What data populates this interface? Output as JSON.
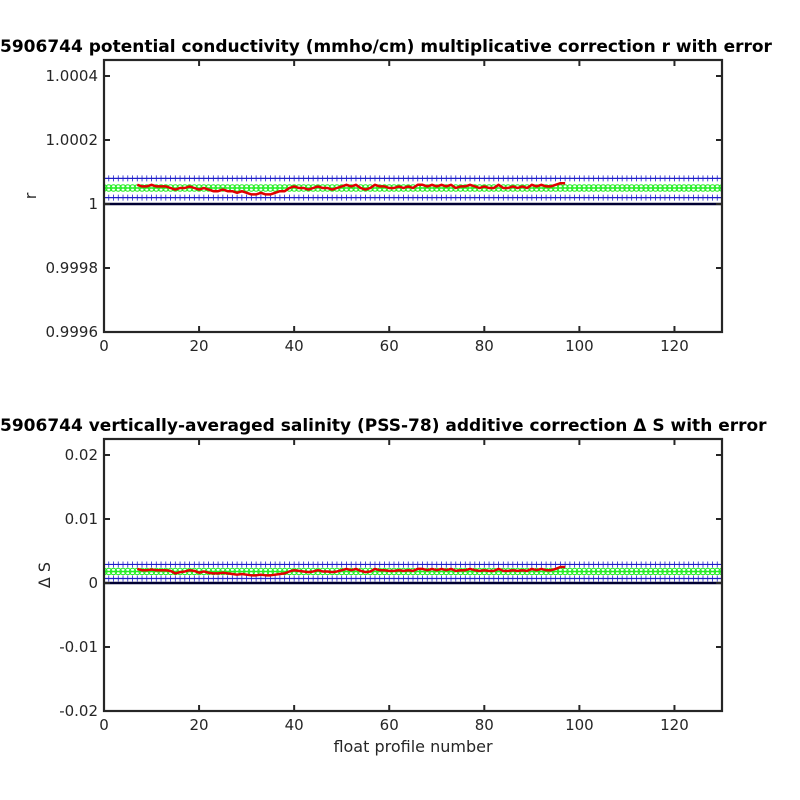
{
  "chart_data": [
    {
      "type": "line",
      "title": "5906744 potential conductivity (mmho/cm) multiplicative correction r with error",
      "xlabel": "",
      "ylabel": "r",
      "xlim": [
        0,
        130
      ],
      "ylim": [
        0.9996,
        1.00045
      ],
      "xticks": [
        0,
        20,
        40,
        60,
        80,
        100,
        120
      ],
      "xtick_labels": [
        "0",
        "20",
        "40",
        "60",
        "80",
        "100",
        "120"
      ],
      "yticks": [
        0.9996,
        0.9998,
        1.0,
        1.0002,
        1.0004
      ],
      "ytick_labels": [
        "0.9996",
        "0.9998",
        "1",
        "1.0002",
        "1.0004"
      ],
      "reference_line": 1.0,
      "grid": false,
      "series": [
        {
          "role": "correction",
          "color": "#e00000",
          "x": [
            7,
            8,
            9,
            10,
            11,
            12,
            13,
            14,
            15,
            16,
            17,
            18,
            19,
            20,
            21,
            22,
            23,
            24,
            25,
            26,
            27,
            28,
            29,
            30,
            31,
            32,
            33,
            34,
            35,
            36,
            37,
            38,
            39,
            40,
            41,
            42,
            43,
            44,
            45,
            46,
            47,
            48,
            49,
            50,
            51,
            52,
            53,
            54,
            55,
            56,
            57,
            58,
            59,
            60,
            61,
            62,
            63,
            64,
            65,
            66,
            67,
            68,
            69,
            70,
            71,
            72,
            73,
            74,
            75,
            76,
            77,
            78,
            79,
            80,
            81,
            82,
            83,
            84,
            85,
            86,
            87,
            88,
            89,
            90,
            91,
            92,
            93,
            94,
            95,
            96,
            97
          ],
          "y": [
            1.00006,
            1.000055,
            1.000055,
            1.00006,
            1.000055,
            1.000055,
            1.000055,
            1.00005,
            1.000045,
            1.00005,
            1.00005,
            1.000055,
            1.00005,
            1.000045,
            1.00005,
            1.000045,
            1.00004,
            1.00004,
            1.000045,
            1.00004,
            1.00004,
            1.000035,
            1.00004,
            1.000035,
            1.00003,
            1.00003,
            1.000035,
            1.00003,
            1.00003,
            1.000035,
            1.00004,
            1.00004,
            1.00005,
            1.000055,
            1.00005,
            1.00005,
            1.000045,
            1.00005,
            1.000055,
            1.00005,
            1.00005,
            1.000045,
            1.00005,
            1.000055,
            1.00006,
            1.000055,
            1.00006,
            1.00005,
            1.000045,
            1.00005,
            1.00006,
            1.000055,
            1.000055,
            1.00005,
            1.00005,
            1.000055,
            1.00005,
            1.000055,
            1.00005,
            1.00006,
            1.00006,
            1.000055,
            1.00006,
            1.000055,
            1.00006,
            1.000055,
            1.00006,
            1.00005,
            1.000055,
            1.000055,
            1.00006,
            1.000055,
            1.00005,
            1.000055,
            1.00005,
            1.00005,
            1.00006,
            1.00005,
            1.00005,
            1.000055,
            1.00005,
            1.000055,
            1.00005,
            1.00006,
            1.000055,
            1.00006,
            1.000055,
            1.000055,
            1.00006,
            1.000065,
            1.000065
          ]
        },
        {
          "role": "mean",
          "color": "#22ee22",
          "marker": "circle",
          "x_start": 0,
          "x_end": 130,
          "x_step": 1,
          "y": 1.00005
        },
        {
          "role": "error",
          "color": "#1e1ec8",
          "marker": "plus",
          "x_start": 0,
          "x_end": 130,
          "x_step": 1,
          "y_upper": 1.00008,
          "y_lower": 1.00002
        }
      ]
    },
    {
      "type": "line",
      "title": "5906744 vertically-averaged salinity (PSS-78) additive correction Δ S with error",
      "xlabel": "float profile number",
      "ylabel": "Δ S",
      "xlim": [
        0,
        130
      ],
      "ylim": [
        -0.02,
        0.0225
      ],
      "xticks": [
        0,
        20,
        40,
        60,
        80,
        100,
        120
      ],
      "xtick_labels": [
        "0",
        "20",
        "40",
        "60",
        "80",
        "100",
        "120"
      ],
      "yticks": [
        -0.02,
        -0.01,
        0,
        0.01,
        0.02
      ],
      "ytick_labels": [
        "-0.02",
        "-0.01",
        "0",
        "0.01",
        "0.02"
      ],
      "reference_line": 0,
      "grid": false,
      "series": [
        {
          "role": "correction",
          "color": "#e00000",
          "x": [
            7,
            8,
            9,
            10,
            11,
            12,
            13,
            14,
            15,
            16,
            17,
            18,
            19,
            20,
            21,
            22,
            23,
            24,
            25,
            26,
            27,
            28,
            29,
            30,
            31,
            32,
            33,
            34,
            35,
            36,
            37,
            38,
            39,
            40,
            41,
            42,
            43,
            44,
            45,
            46,
            47,
            48,
            49,
            50,
            51,
            52,
            53,
            54,
            55,
            56,
            57,
            58,
            59,
            60,
            61,
            62,
            63,
            64,
            65,
            66,
            67,
            68,
            69,
            70,
            71,
            72,
            73,
            74,
            75,
            76,
            77,
            78,
            79,
            80,
            81,
            82,
            83,
            84,
            85,
            86,
            87,
            88,
            89,
            90,
            91,
            92,
            93,
            94,
            95,
            96,
            97
          ],
          "y": [
            0.0022,
            0.002,
            0.002,
            0.0021,
            0.002,
            0.002,
            0.002,
            0.0019,
            0.0015,
            0.0017,
            0.0018,
            0.002,
            0.0019,
            0.0016,
            0.0018,
            0.0016,
            0.0015,
            0.0015,
            0.0016,
            0.0015,
            0.0014,
            0.0013,
            0.0014,
            0.0013,
            0.0012,
            0.0012,
            0.0013,
            0.0012,
            0.0012,
            0.0013,
            0.0014,
            0.0015,
            0.0018,
            0.002,
            0.0019,
            0.0018,
            0.0017,
            0.0018,
            0.002,
            0.0018,
            0.0018,
            0.0017,
            0.0018,
            0.002,
            0.0022,
            0.002,
            0.0022,
            0.0019,
            0.0017,
            0.0018,
            0.0022,
            0.002,
            0.002,
            0.0019,
            0.0019,
            0.002,
            0.0019,
            0.002,
            0.0019,
            0.0022,
            0.0022,
            0.002,
            0.0022,
            0.002,
            0.0022,
            0.002,
            0.0022,
            0.0019,
            0.002,
            0.002,
            0.0022,
            0.002,
            0.0019,
            0.002,
            0.0019,
            0.0019,
            0.0022,
            0.0019,
            0.0019,
            0.002,
            0.0019,
            0.002,
            0.0019,
            0.0022,
            0.002,
            0.0022,
            0.002,
            0.002,
            0.0022,
            0.0025,
            0.0025
          ]
        },
        {
          "role": "mean",
          "color": "#22ee22",
          "marker": "circle",
          "x_start": 0,
          "x_end": 130,
          "x_step": 1,
          "y": 0.0018
        },
        {
          "role": "error",
          "color": "#1e1ec8",
          "marker": "plus",
          "x_start": 0,
          "x_end": 130,
          "x_step": 1,
          "y_upper": 0.0029,
          "y_lower": 0.0007
        }
      ]
    }
  ]
}
